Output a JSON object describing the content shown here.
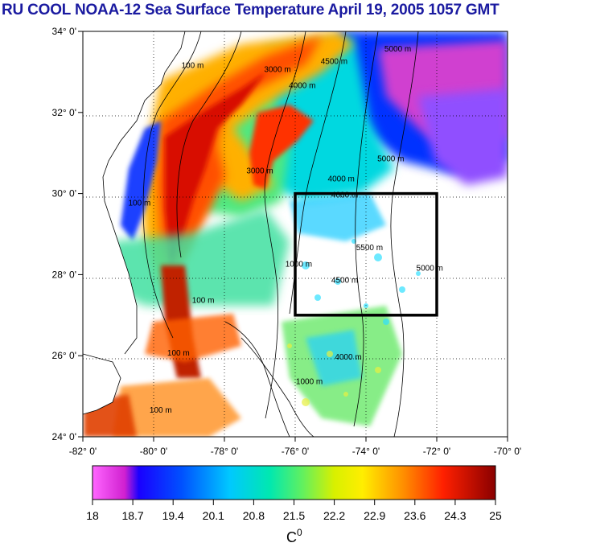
{
  "title": "RU COOL  NOAA-12 Sea Surface Temperature April 19, 2005 1057 GMT",
  "lat_labels": [
    "34° 0'",
    "32° 0'",
    "30° 0'",
    "28° 0'",
    "26° 0'",
    "24° 0'"
  ],
  "lon_labels": [
    "-82° 0'",
    "-80° 0'",
    "-78° 0'",
    "-76° 0'",
    "-74° 0'",
    "-72° 0'",
    "-70° 0'"
  ],
  "map_extent": {
    "lon_min": -82,
    "lon_max": -70,
    "lat_min": 24,
    "lat_max": 34
  },
  "region_box": {
    "lon_min": -76,
    "lon_max": -72,
    "lat_min": 27,
    "lat_max": 30
  },
  "contours": [
    {
      "text": "100 m",
      "lon": -78.9,
      "lat": 33.1
    },
    {
      "text": "100 m",
      "lon": -80.4,
      "lat": 29.7
    },
    {
      "text": "100 m",
      "lon": -78.6,
      "lat": 27.3
    },
    {
      "text": "100 m",
      "lon": -79.8,
      "lat": 24.6
    },
    {
      "text": "100 m",
      "lon": -79.3,
      "lat": 26.0
    },
    {
      "text": "3000 m",
      "lon": -76.5,
      "lat": 33.0
    },
    {
      "text": "3000 m",
      "lon": -77.0,
      "lat": 30.5
    },
    {
      "text": "4000 m",
      "lon": -75.8,
      "lat": 32.6
    },
    {
      "text": "4000 m",
      "lon": -74.7,
      "lat": 30.3
    },
    {
      "text": "4500 m",
      "lon": -74.9,
      "lat": 33.2
    },
    {
      "text": "4000 m",
      "lon": -74.6,
      "lat": 29.9
    },
    {
      "text": "5000 m",
      "lon": -73.1,
      "lat": 33.5
    },
    {
      "text": "5000 m",
      "lon": -73.3,
      "lat": 30.8
    },
    {
      "text": "5000 m",
      "lon": -72.2,
      "lat": 28.1
    },
    {
      "text": "5500 m",
      "lon": -73.9,
      "lat": 28.6
    },
    {
      "text": "4500 m",
      "lon": -74.6,
      "lat": 27.8
    },
    {
      "text": "4000 m",
      "lon": -74.5,
      "lat": 25.9
    },
    {
      "text": "1000 m",
      "lon": -75.9,
      "lat": 28.2
    },
    {
      "text": "1000 m",
      "lon": -75.6,
      "lat": 25.3
    }
  ],
  "colorbar": {
    "ticks": [
      "18",
      "18.7",
      "19.4",
      "20.1",
      "20.8",
      "21.5",
      "22.2",
      "22.9",
      "23.6",
      "24.3",
      "25"
    ],
    "unit": "C",
    "unit_sup": "0",
    "min": 18,
    "max": 25
  },
  "colors": {
    "title": "#1a1aa0",
    "land": "#ffffff",
    "coast": "#000000"
  }
}
